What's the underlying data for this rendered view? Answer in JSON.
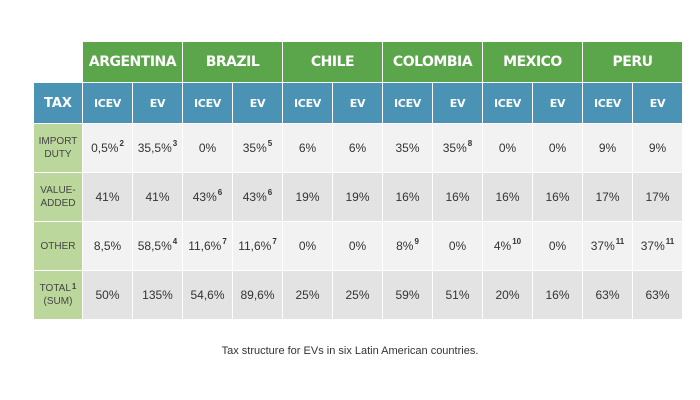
{
  "header": {
    "tax_label": "TAX",
    "countries": [
      "ARGENTINA",
      "BRAZIL",
      "CHILE",
      "COLOMBIA",
      "MEXICO",
      "PERU"
    ],
    "sub_labels": [
      "ICEV",
      "EV"
    ]
  },
  "rows": [
    {
      "label_lines": [
        "IMPORT",
        "DUTY"
      ],
      "label_sup": "",
      "cells": [
        {
          "v": "0,5%",
          "s": "2"
        },
        {
          "v": "35,5%",
          "s": "3"
        },
        {
          "v": "0%",
          "s": ""
        },
        {
          "v": "35%",
          "s": "5"
        },
        {
          "v": "6%",
          "s": ""
        },
        {
          "v": "6%",
          "s": ""
        },
        {
          "v": "35%",
          "s": ""
        },
        {
          "v": "35%",
          "s": "8"
        },
        {
          "v": "0%",
          "s": ""
        },
        {
          "v": "0%",
          "s": ""
        },
        {
          "v": "9%",
          "s": ""
        },
        {
          "v": "9%",
          "s": ""
        }
      ]
    },
    {
      "label_lines": [
        "VALUE-",
        "ADDED"
      ],
      "label_sup": "",
      "cells": [
        {
          "v": "41%",
          "s": ""
        },
        {
          "v": "41%",
          "s": ""
        },
        {
          "v": "43%",
          "s": "6"
        },
        {
          "v": "43%",
          "s": "6"
        },
        {
          "v": "19%",
          "s": ""
        },
        {
          "v": "19%",
          "s": ""
        },
        {
          "v": "16%",
          "s": ""
        },
        {
          "v": "16%",
          "s": ""
        },
        {
          "v": "16%",
          "s": ""
        },
        {
          "v": "16%",
          "s": ""
        },
        {
          "v": "17%",
          "s": ""
        },
        {
          "v": "17%",
          "s": ""
        }
      ]
    },
    {
      "label_lines": [
        "OTHER"
      ],
      "label_sup": "",
      "cells": [
        {
          "v": "8,5%",
          "s": ""
        },
        {
          "v": "58,5%",
          "s": "4"
        },
        {
          "v": "11,6%",
          "s": "7"
        },
        {
          "v": "11,6%",
          "s": "7"
        },
        {
          "v": "0%",
          "s": ""
        },
        {
          "v": "0%",
          "s": ""
        },
        {
          "v": "8%",
          "s": "9"
        },
        {
          "v": "0%",
          "s": ""
        },
        {
          "v": "4%",
          "s": "10"
        },
        {
          "v": "0%",
          "s": ""
        },
        {
          "v": "37%",
          "s": "11"
        },
        {
          "v": "37%",
          "s": "11"
        }
      ]
    },
    {
      "label_lines": [
        "TOTAL",
        "(SUM)"
      ],
      "label_sup": "1",
      "cells": [
        {
          "v": "50%",
          "s": ""
        },
        {
          "v": "135%",
          "s": ""
        },
        {
          "v": "54,6%",
          "s": ""
        },
        {
          "v": "89,6%",
          "s": ""
        },
        {
          "v": "25%",
          "s": ""
        },
        {
          "v": "25%",
          "s": ""
        },
        {
          "v": "59%",
          "s": ""
        },
        {
          "v": "51%",
          "s": ""
        },
        {
          "v": "20%",
          "s": ""
        },
        {
          "v": "16%",
          "s": ""
        },
        {
          "v": "63%",
          "s": ""
        },
        {
          "v": "63%",
          "s": ""
        }
      ]
    }
  ],
  "caption": "Tax structure for EVs in six Latin American countries.",
  "colors": {
    "country_header": "#5ba54a",
    "sub_header": "#4a93b4",
    "row_label": "#bcd79c"
  }
}
